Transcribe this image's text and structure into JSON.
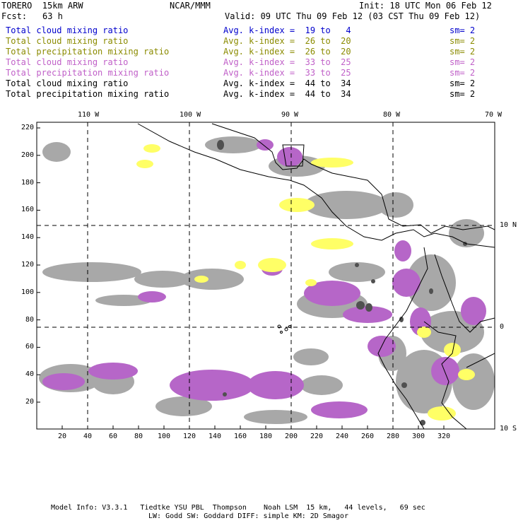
{
  "header": {
    "model": "TORERO  15km ARW",
    "org": "NCAR/MMM",
    "init": "Init: 18 UTC Mon 06 Feb 12",
    "fcst_label": "Fcst:",
    "fcst_value": "63 h",
    "valid": "Valid: 09 UTC Thu 09 Feb 12 (03 CST Thu 09 Feb 12)"
  },
  "legend": [
    {
      "field": "Total cloud mixing ratio",
      "range": "Avg. k-index =  19 to   4",
      "sm": "sm= 2",
      "color": "#0000cc"
    },
    {
      "field": "Total cloud mixing ratio",
      "range": "Avg. k-index =  26 to  20",
      "sm": "sm= 2",
      "color": "#8b8b00"
    },
    {
      "field": "Total precipitation mixing ratio",
      "range": "Avg. k-index =  26 to  20",
      "sm": "sm= 2",
      "color": "#8b8b00"
    },
    {
      "field": "Total cloud mixing ratio",
      "range": "Avg. k-index =  33 to  25",
      "sm": "sm= 2",
      "color": "#c060c8"
    },
    {
      "field": "Total precipitation mixing ratio",
      "range": "Avg. k-index =  33 to  25",
      "sm": "sm= 2",
      "color": "#c060c8"
    },
    {
      "field": "Total cloud mixing ratio",
      "range": "Avg. k-index =  44 to  34",
      "sm": "sm= 2",
      "color": "#000000"
    },
    {
      "field": "Total precipitation mixing ratio",
      "range": "Avg. k-index =  44 to  34",
      "sm": "sm= 2",
      "color": "#000000"
    }
  ],
  "map": {
    "top_longitudes": [
      "110 W",
      "100 W",
      "90 W",
      "80 W",
      "70 W"
    ],
    "right_latitudes": [
      "10 N",
      "0",
      "10 S"
    ],
    "y_ticks": [
      "220",
      "200",
      "180",
      "160",
      "140",
      "120",
      "100",
      "80",
      "60",
      "40",
      "20"
    ],
    "x_ticks": [
      "20",
      "40",
      "60",
      "80",
      "100",
      "120",
      "140",
      "160",
      "180",
      "200",
      "220",
      "240",
      "260",
      "280",
      "300",
      "320"
    ],
    "colors": {
      "gray": "#a8a8a8",
      "dark": "#505050",
      "yellow": "#ffff66",
      "purple": "#b666c8",
      "cyan": "#c8f0ff"
    }
  },
  "footer": {
    "line1": "Model Info: V3.3.1   Tiedtke YSU PBL  Thompson    Noah LSM  15 km,   44 levels,   69 sec",
    "line2": "LW: Godd SW: Goddard DIFF: simple KM: 2D Smagor"
  }
}
